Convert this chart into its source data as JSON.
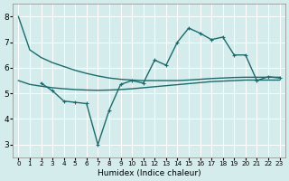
{
  "xlabel": "Humidex (Indice chaleur)",
  "bg_color": "#d4ecec",
  "grid_color": "#ffffff",
  "line_color": "#1a6b6b",
  "xlim": [
    -0.5,
    23.5
  ],
  "ylim": [
    2.5,
    8.5
  ],
  "xticks": [
    0,
    1,
    2,
    3,
    4,
    5,
    6,
    7,
    8,
    9,
    10,
    11,
    12,
    13,
    14,
    15,
    16,
    17,
    18,
    19,
    20,
    21,
    22,
    23
  ],
  "yticks": [
    3,
    4,
    5,
    6,
    7,
    8
  ],
  "line_top_x": [
    0,
    1,
    2,
    3,
    4,
    5,
    6,
    7,
    8,
    9,
    10,
    11,
    12,
    13,
    14,
    15,
    16,
    17,
    18,
    19,
    20,
    21,
    22,
    23
  ],
  "line_top_y": [
    8.0,
    6.7,
    6.4,
    6.2,
    6.05,
    5.9,
    5.78,
    5.68,
    5.6,
    5.55,
    5.52,
    5.5,
    5.5,
    5.5,
    5.5,
    5.52,
    5.55,
    5.58,
    5.6,
    5.62,
    5.63,
    5.63,
    5.63,
    5.63
  ],
  "line_mid_x": [
    2,
    3,
    4,
    5,
    6,
    7,
    8,
    9,
    10,
    11,
    12,
    13,
    14,
    15,
    16,
    17,
    18,
    19,
    20,
    21,
    22,
    23
  ],
  "line_mid_y": [
    5.4,
    5.1,
    4.7,
    4.65,
    4.6,
    3.0,
    4.35,
    5.35,
    5.5,
    5.4,
    6.3,
    6.1,
    7.0,
    7.55,
    7.35,
    7.1,
    7.2,
    6.5,
    6.5,
    5.5,
    5.65,
    5.6
  ],
  "line_bot_x": [
    0,
    1,
    2,
    3,
    4,
    5,
    6,
    7,
    8,
    9,
    10,
    11,
    12,
    13,
    14,
    15,
    16,
    17,
    18,
    19,
    20,
    21,
    22,
    23
  ],
  "line_bot_y": [
    5.5,
    5.35,
    5.28,
    5.22,
    5.18,
    5.15,
    5.13,
    5.12,
    5.13,
    5.15,
    5.18,
    5.22,
    5.26,
    5.3,
    5.34,
    5.38,
    5.42,
    5.46,
    5.48,
    5.5,
    5.52,
    5.52,
    5.52,
    5.52
  ]
}
